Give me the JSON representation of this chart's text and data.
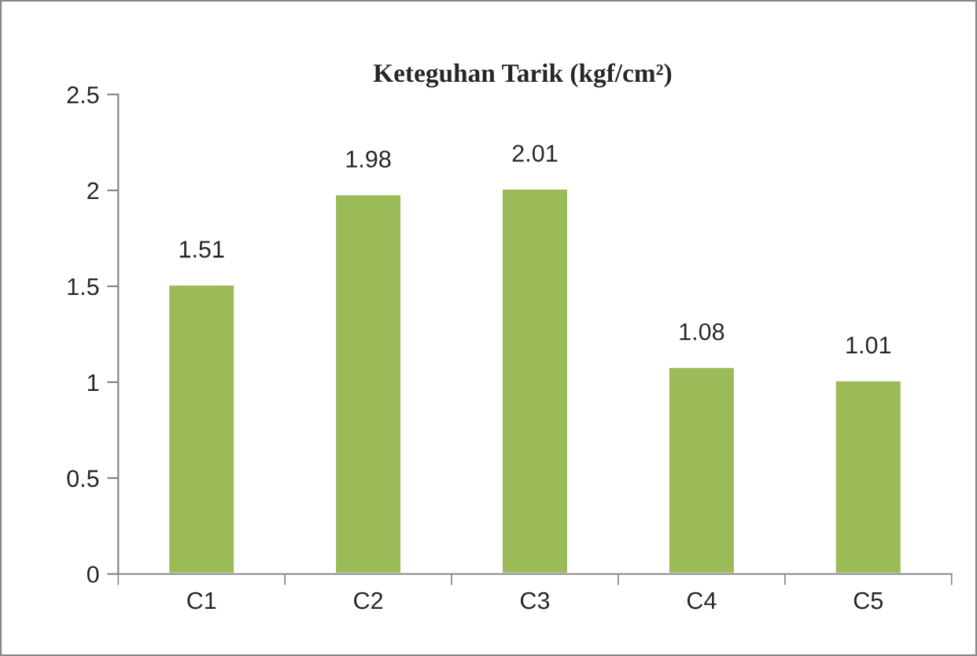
{
  "chart_data": {
    "type": "bar",
    "title": "Keteguhan Tarik (kgf/cm²)",
    "categories": [
      "C1",
      "C2",
      "C3",
      "C4",
      "C5"
    ],
    "values": [
      1.51,
      1.98,
      2.01,
      1.08,
      1.01
    ],
    "color": "#9bbb59",
    "ylim": [
      0,
      2.5
    ],
    "yticks": [
      0,
      0.5,
      1,
      1.5,
      2,
      2.5
    ],
    "grid": false,
    "data_labels": true
  }
}
